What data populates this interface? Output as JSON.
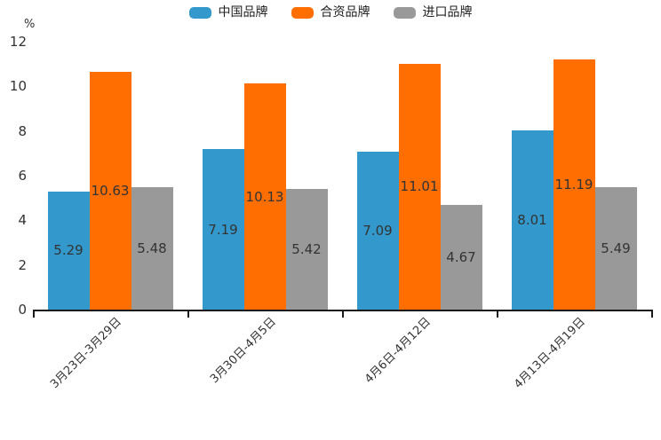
{
  "chart_data": {
    "type": "bar",
    "title": "",
    "unit_label": "%",
    "categories": [
      "3月23日-3月29日",
      "3月30日-4月5日",
      "4月6日-4月12日",
      "4月13日-4月19日"
    ],
    "series": [
      {
        "name": "中国品牌",
        "color": "#3399CC",
        "values": [
          5.29,
          7.19,
          7.09,
          8.01
        ]
      },
      {
        "name": "合资品牌",
        "color": "#FF6E00",
        "values": [
          10.63,
          10.13,
          11.01,
          11.19
        ]
      },
      {
        "name": "进口品牌",
        "color": "#999999",
        "values": [
          5.48,
          5.42,
          4.67,
          5.49
        ]
      }
    ],
    "ylim": [
      0,
      12
    ],
    "ytick_step": 2,
    "legend_position": "top",
    "grid": false,
    "value_labels": "inside-center",
    "value_label_color": "#333333",
    "axis_color": "#1a1a1a",
    "tick_label_color": "#333333"
  }
}
